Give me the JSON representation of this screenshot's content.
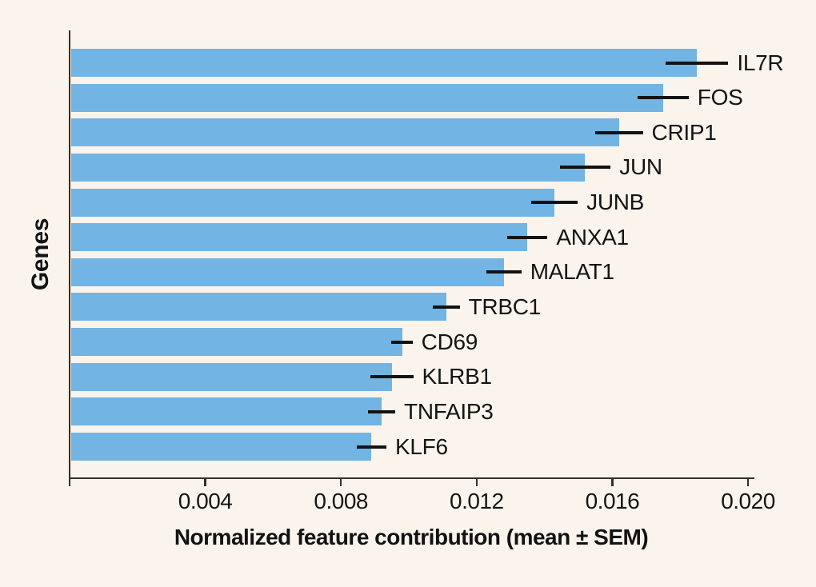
{
  "colors": {
    "background": "#faf4ec",
    "bar": "#72b4e3",
    "spine": "#33302c",
    "error_bar": "#121212",
    "text": "#141414"
  },
  "chart_data": {
    "type": "bar",
    "orientation": "horizontal",
    "title": "",
    "xlabel": "Normalized feature contribution (mean ± SEM)",
    "ylabel": "Genes",
    "xlim": [
      0,
      0.0202
    ],
    "grid": false,
    "legend": "none",
    "xticks": [
      0.004,
      0.008,
      0.012,
      0.016,
      0.02
    ],
    "xtick_labels": [
      "0.004",
      "0.008",
      "0.012",
      "0.016",
      "0.020"
    ],
    "categories": [
      "IL7R",
      "FOS",
      "CRIP1",
      "JUN",
      "JUNB",
      "ANXA1",
      "MALAT1",
      "TRBC1",
      "CD69",
      "KLRB1",
      "TNFAIP3",
      "KLF6"
    ],
    "series": [
      {
        "name": "Normalized feature contribution (mean)",
        "values": [
          0.0185,
          0.0175,
          0.0162,
          0.0152,
          0.0143,
          0.0135,
          0.0128,
          0.0111,
          0.0098,
          0.0095,
          0.0092,
          0.0089
        ],
        "sem": [
          0.00092,
          0.00075,
          0.0007,
          0.00075,
          0.00068,
          0.00059,
          0.00052,
          0.0004,
          0.00031,
          0.00063,
          0.0004,
          0.00044
        ]
      }
    ]
  }
}
